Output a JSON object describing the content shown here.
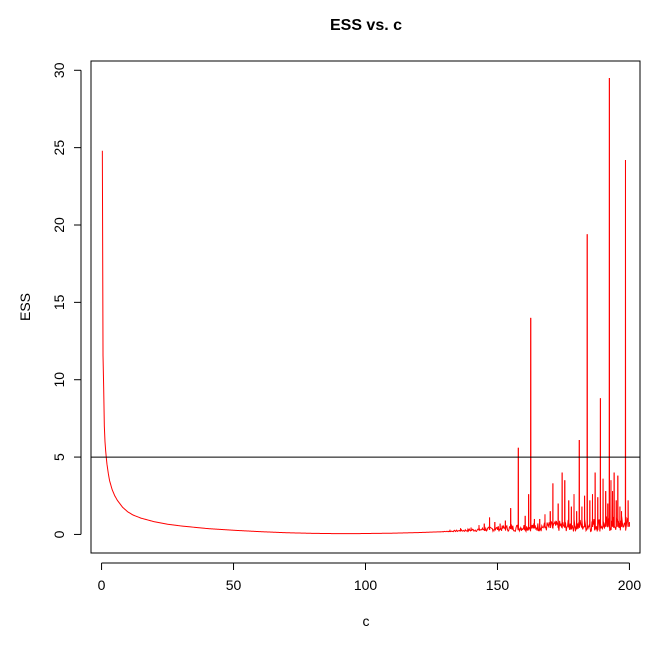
{
  "chart_data": {
    "type": "line",
    "title": "ESS vs. c",
    "xlabel": "c",
    "ylabel": "ESS",
    "xlim": [
      -4,
      204
    ],
    "ylim": [
      -1.2,
      30.6
    ],
    "x_ticks": [
      0,
      50,
      100,
      150,
      200
    ],
    "y_ticks": [
      0,
      5,
      10,
      15,
      20,
      25,
      30
    ],
    "grid": false,
    "legend": "none",
    "hline": {
      "y": 5,
      "color": "#000000"
    },
    "series": [
      {
        "color": "#ff0000",
        "base_curve": [
          [
            0.3,
            24.8
          ],
          [
            0.5,
            12.0
          ],
          [
            0.8,
            9.5
          ],
          [
            1.0,
            7.2
          ],
          [
            1.3,
            6.0
          ],
          [
            1.6,
            5.3
          ],
          [
            2.0,
            4.6
          ],
          [
            2.5,
            4.0
          ],
          [
            3.0,
            3.5
          ],
          [
            4.0,
            2.9
          ],
          [
            5.0,
            2.5
          ],
          [
            6.0,
            2.2
          ],
          [
            8.0,
            1.75
          ],
          [
            10.0,
            1.45
          ],
          [
            12.0,
            1.25
          ],
          [
            15.0,
            1.05
          ],
          [
            20.0,
            0.82
          ],
          [
            25.0,
            0.66
          ],
          [
            30.0,
            0.55
          ],
          [
            40.0,
            0.38
          ],
          [
            50.0,
            0.27
          ],
          [
            60.0,
            0.18
          ],
          [
            70.0,
            0.11
          ],
          [
            80.0,
            0.07
          ],
          [
            90.0,
            0.05
          ],
          [
            95.0,
            0.05
          ],
          [
            100.0,
            0.06
          ],
          [
            110.0,
            0.08
          ],
          [
            120.0,
            0.12
          ],
          [
            130.0,
            0.18
          ],
          [
            140.0,
            0.25
          ],
          [
            150.0,
            0.32
          ],
          [
            160.0,
            0.38
          ],
          [
            170.0,
            0.42
          ],
          [
            180.0,
            0.46
          ],
          [
            190.0,
            0.5
          ],
          [
            200.0,
            0.5
          ]
        ],
        "spikes": [
          [
            132.0,
            0.3
          ],
          [
            136.0,
            0.4
          ],
          [
            140.0,
            0.45
          ],
          [
            143.0,
            0.6
          ],
          [
            145.0,
            0.7
          ],
          [
            147.0,
            1.1
          ],
          [
            149.0,
            0.8
          ],
          [
            151.0,
            0.7
          ],
          [
            153.0,
            0.9
          ],
          [
            155.0,
            1.7
          ],
          [
            157.9,
            5.6
          ],
          [
            160.5,
            1.2
          ],
          [
            161.8,
            2.6
          ],
          [
            162.6,
            14.0
          ],
          [
            164.0,
            1.0
          ],
          [
            166.0,
            1.0
          ],
          [
            168.0,
            1.3
          ],
          [
            170.0,
            1.5
          ],
          [
            171.0,
            3.3
          ],
          [
            173.0,
            2.0
          ],
          [
            174.5,
            4.0
          ],
          [
            175.5,
            3.5
          ],
          [
            177.0,
            2.2
          ],
          [
            178.0,
            1.8
          ],
          [
            179.0,
            2.6
          ],
          [
            180.0,
            1.5
          ],
          [
            181.0,
            6.1
          ],
          [
            182.0,
            1.8
          ],
          [
            183.0,
            2.5
          ],
          [
            184.0,
            19.4
          ],
          [
            185.0,
            2.2
          ],
          [
            186.0,
            2.6
          ],
          [
            187.0,
            4.0
          ],
          [
            188.0,
            2.4
          ],
          [
            189.0,
            8.8
          ],
          [
            190.0,
            3.6
          ],
          [
            191.0,
            2.8
          ],
          [
            191.8,
            2.0
          ],
          [
            192.4,
            29.5
          ],
          [
            193.0,
            3.5
          ],
          [
            193.6,
            2.8
          ],
          [
            194.2,
            4.0
          ],
          [
            195.0,
            2.2
          ],
          [
            195.6,
            3.8
          ],
          [
            196.4,
            1.8
          ],
          [
            197.0,
            1.5
          ],
          [
            198.5,
            24.2
          ],
          [
            199.5,
            2.2
          ],
          [
            200.0,
            0.8
          ]
        ]
      }
    ]
  }
}
